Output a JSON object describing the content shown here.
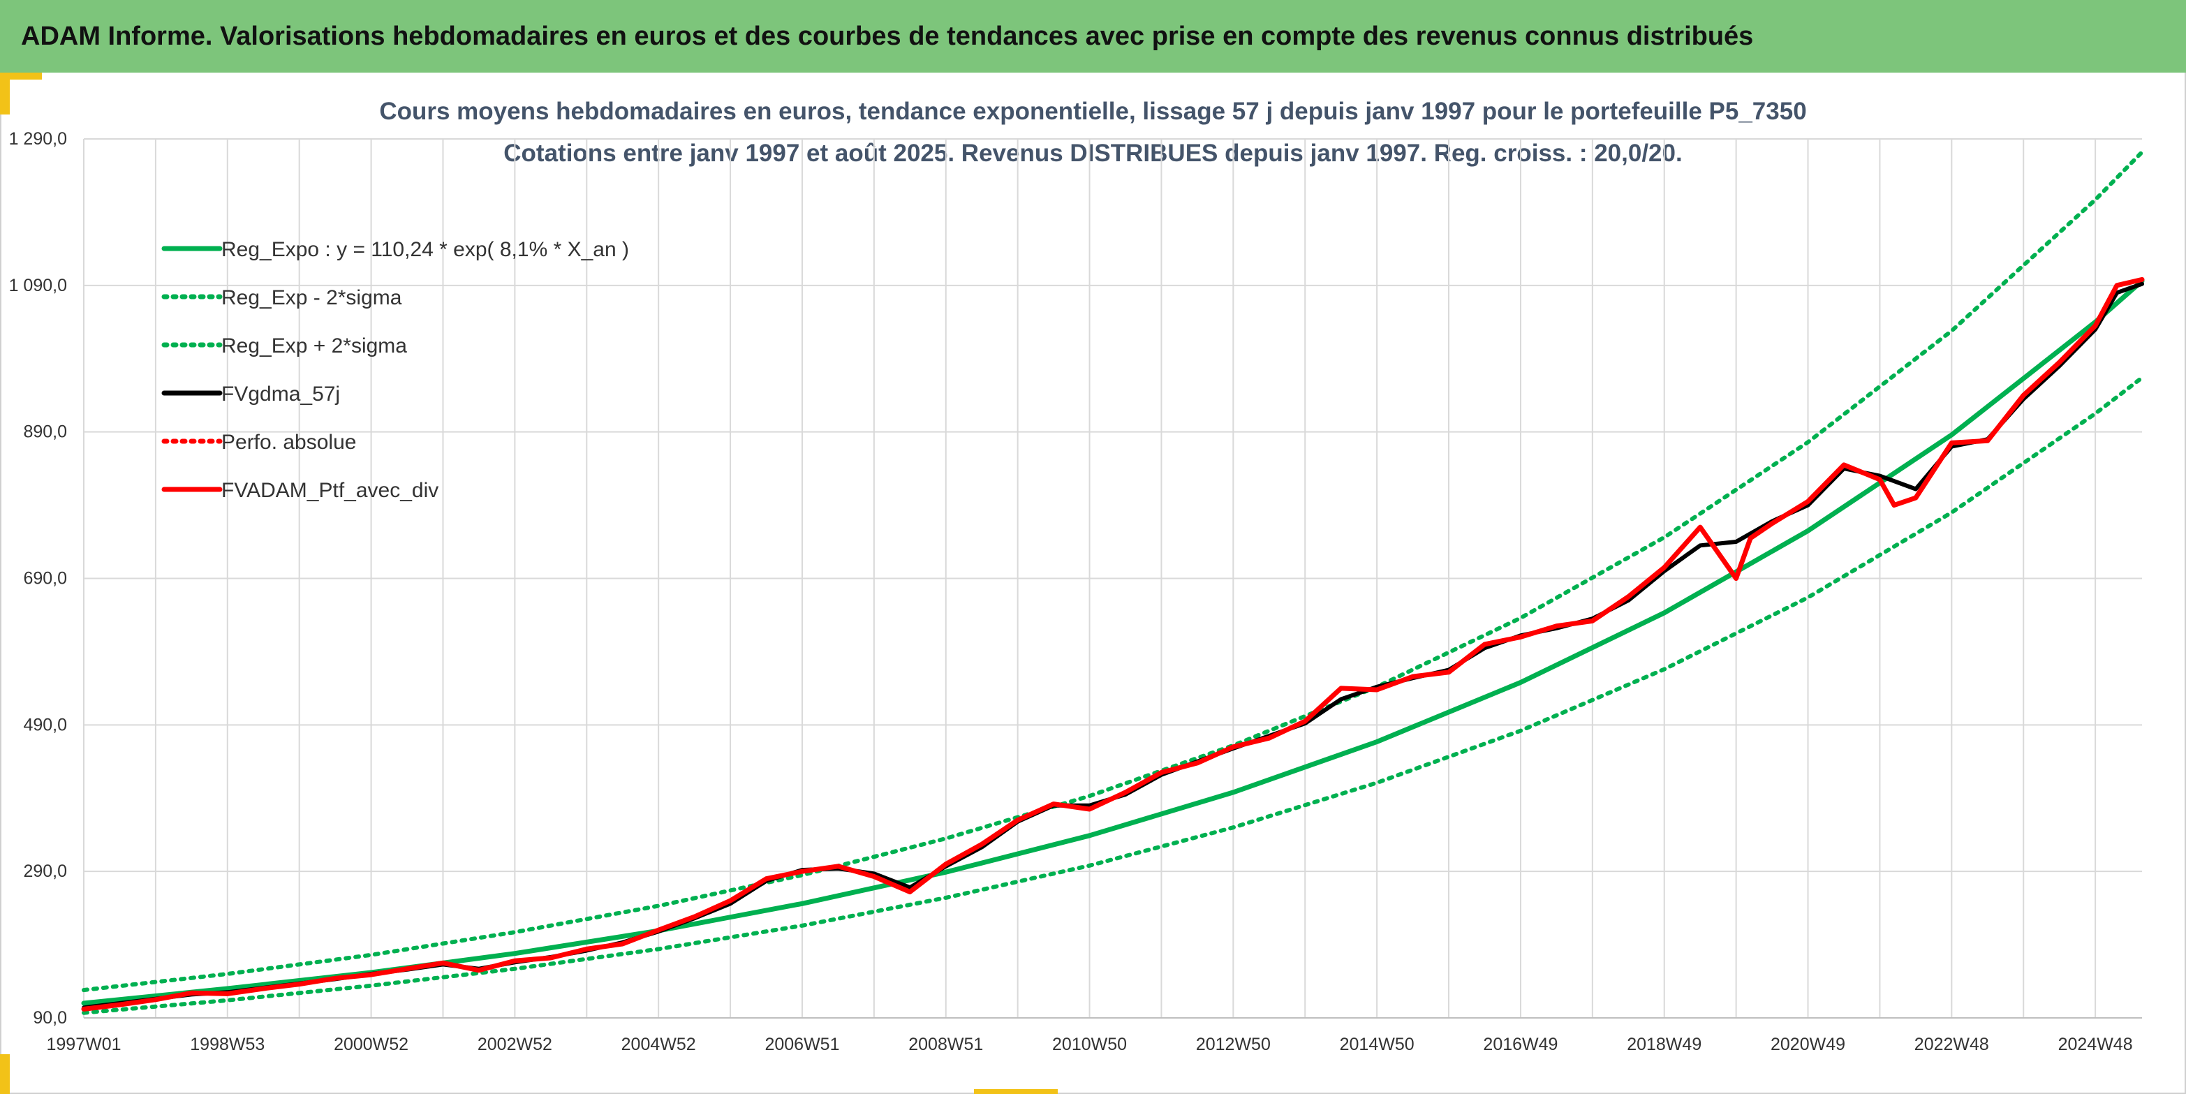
{
  "header": {
    "title": "ADAM Informe. Valorisations hebdomadaires en euros et des courbes de tendances avec prise en compte des revenus connus distribués"
  },
  "colors": {
    "banner": "#7dc57b",
    "reg_expo": "#00b050",
    "fv_gdma": "#000000",
    "fvadam": "#ff0000",
    "grid": "#d9d9d9"
  },
  "chart_data": {
    "type": "line",
    "title": "Cours moyens hebdomadaires en euros, tendance exponentielle, lissage 57 j depuis janv 1997 pour le portefeuille P5_7350",
    "subtitle": "Cotations entre janv 1997 et août 2025. Revenus DISTRIBUES depuis janv 1997. Reg. croiss. : 20,0/20.",
    "xlabel": "",
    "ylabel": "",
    "x_range": [
      1997.0,
      2025.65
    ],
    "ylim": [
      90,
      1290
    ],
    "y_ticks": [
      "90,0",
      "290,0",
      "490,0",
      "690,0",
      "890,0",
      "1 090,0",
      "1 290,0"
    ],
    "x_ticks": [
      {
        "label": "1997W01",
        "x": 1997.0
      },
      {
        "label": "1998W53",
        "x": 1999.0
      },
      {
        "label": "2000W52",
        "x": 2001.0
      },
      {
        "label": "2002W52",
        "x": 2003.0
      },
      {
        "label": "2004W52",
        "x": 2005.0
      },
      {
        "label": "2006W51",
        "x": 2007.0
      },
      {
        "label": "2008W51",
        "x": 2009.0
      },
      {
        "label": "2010W50",
        "x": 2011.0
      },
      {
        "label": "2012W50",
        "x": 2013.0
      },
      {
        "label": "2014W50",
        "x": 2015.0
      },
      {
        "label": "2016W49",
        "x": 2017.0
      },
      {
        "label": "2018W49",
        "x": 2019.0
      },
      {
        "label": "2020W49",
        "x": 2021.0
      },
      {
        "label": "2022W48",
        "x": 2023.0
      },
      {
        "label": "2024W48",
        "x": 2025.0
      }
    ],
    "grid": true,
    "legend_position": "top-left",
    "series": [
      {
        "name": "Reg_Expo : y = 110,24 * exp( 8,1% *  X_an )",
        "style": "solid",
        "color": "#00b050",
        "x": [
          1997.0,
          1999.0,
          2001.0,
          2003.0,
          2005.0,
          2007.0,
          2009.0,
          2011.0,
          2013.0,
          2015.0,
          2017.0,
          2019.0,
          2021.0,
          2023.0,
          2025.0,
          2025.65
        ],
        "values": [
          110,
          130,
          152,
          178,
          209,
          246,
          289,
          339,
          398,
          467,
          548,
          643,
          755,
          886,
          1040,
          1096
        ]
      },
      {
        "name": "Reg_Exp - 2*sigma",
        "style": "dotted",
        "color": "#00b050",
        "x": [
          1997.0,
          1999.0,
          2001.0,
          2003.0,
          2005.0,
          2007.0,
          2009.0,
          2011.0,
          2013.0,
          2015.0,
          2017.0,
          2019.0,
          2021.0,
          2023.0,
          2025.0,
          2025.65
        ],
        "values": [
          97,
          114,
          134,
          157,
          184,
          216,
          254,
          298,
          350,
          411,
          482,
          566,
          664,
          780,
          915,
          964
        ]
      },
      {
        "name": "Reg_Exp + 2*sigma",
        "style": "dotted",
        "color": "#00b050",
        "x": [
          1997.0,
          1999.0,
          2001.0,
          2003.0,
          2005.0,
          2007.0,
          2009.0,
          2011.0,
          2013.0,
          2015.0,
          2017.0,
          2019.0,
          2021.0,
          2023.0,
          2025.0,
          2025.65
        ],
        "values": [
          128,
          150,
          176,
          207,
          243,
          285,
          335,
          393,
          462,
          542,
          636,
          746,
          876,
          1028,
          1207,
          1272
        ]
      },
      {
        "name": "FVgdma_57j",
        "style": "solid",
        "color": "#000000",
        "x": [
          1997.0,
          1997.5,
          1998.0,
          1998.5,
          1999.0,
          1999.5,
          2000.0,
          2000.5,
          2001.0,
          2001.5,
          2002.0,
          2002.5,
          2003.0,
          2003.5,
          2004.0,
          2004.5,
          2005.0,
          2005.5,
          2006.0,
          2006.5,
          2007.0,
          2007.5,
          2008.0,
          2008.5,
          2009.0,
          2009.5,
          2010.0,
          2010.5,
          2011.0,
          2011.5,
          2012.0,
          2012.5,
          2013.0,
          2013.5,
          2014.0,
          2014.5,
          2015.0,
          2015.5,
          2016.0,
          2016.5,
          2017.0,
          2017.5,
          2018.0,
          2018.5,
          2019.0,
          2019.5,
          2020.0,
          2020.5,
          2021.0,
          2021.5,
          2022.0,
          2022.5,
          2023.0,
          2023.5,
          2024.0,
          2024.5,
          2025.0,
          2025.3,
          2025.65
        ],
        "values": [
          104,
          110,
          116,
          122,
          125,
          131,
          137,
          143,
          150,
          156,
          163,
          157,
          166,
          173,
          182,
          193,
          208,
          226,
          246,
          277,
          292,
          294,
          287,
          268,
          297,
          323,
          358,
          380,
          380,
          395,
          422,
          440,
          458,
          475,
          492,
          525,
          542,
          554,
          565,
          595,
          612,
          622,
          635,
          660,
          700,
          735,
          740,
          768,
          790,
          840,
          830,
          812,
          870,
          880,
          935,
          980,
          1030,
          1080,
          1092
        ]
      },
      {
        "name": "Perfo. absolue",
        "style": "dotted",
        "color": "#ff0000",
        "x": [
          1997.0,
          1997.5,
          1998.0,
          1998.5,
          1999.0,
          1999.5,
          2000.0,
          2000.5,
          2001.0,
          2001.5,
          2002.0,
          2002.5,
          2003.0,
          2003.5,
          2004.0,
          2004.5,
          2005.0,
          2005.5,
          2006.0,
          2006.5,
          2007.0,
          2007.5,
          2008.0,
          2008.5,
          2009.0,
          2009.5,
          2010.0,
          2010.5,
          2011.0,
          2011.5,
          2012.0,
          2012.5,
          2013.0,
          2013.5,
          2014.0,
          2014.5,
          2015.0,
          2015.5,
          2016.0,
          2016.5,
          2017.0,
          2017.5,
          2018.0,
          2018.5,
          2019.0,
          2019.5,
          2020.0,
          2020.5,
          2021.0,
          2021.5,
          2022.0,
          2022.5,
          2023.0,
          2023.5,
          2024.0,
          2024.5,
          2025.0,
          2025.3,
          2025.65
        ],
        "values": [
          102,
          108,
          115,
          124,
          123,
          130,
          136,
          144,
          149,
          157,
          165,
          155,
          168,
          172,
          184,
          191,
          210,
          228,
          250,
          280,
          290,
          297,
          283,
          262,
          300,
          327,
          360,
          382,
          375,
          398,
          425,
          438,
          460,
          472,
          495,
          540,
          538,
          556,
          562,
          600,
          610,
          625,
          632,
          665,
          705,
          730,
          745,
          765,
          795,
          845,
          825,
          800,
          875,
          878,
          940,
          985,
          1035,
          1090,
          1098
        ]
      },
      {
        "name": "FVADAM_Ptf_avec_div",
        "style": "solid",
        "color": "#ff0000",
        "x": [
          1997.0,
          1997.5,
          1998.0,
          1998.5,
          1999.0,
          1999.5,
          2000.0,
          2000.5,
          2001.0,
          2001.5,
          2002.0,
          2002.5,
          2003.0,
          2003.5,
          2004.0,
          2004.5,
          2005.0,
          2005.5,
          2006.0,
          2006.5,
          2007.0,
          2007.5,
          2008.0,
          2008.5,
          2009.0,
          2009.5,
          2010.0,
          2010.5,
          2011.0,
          2011.5,
          2012.0,
          2012.5,
          2013.0,
          2013.5,
          2014.0,
          2014.5,
          2015.0,
          2015.5,
          2016.0,
          2016.5,
          2017.0,
          2017.5,
          2018.0,
          2018.5,
          2019.0,
          2019.5,
          2020.0,
          2020.2,
          2020.5,
          2021.0,
          2021.5,
          2022.0,
          2022.2,
          2022.5,
          2023.0,
          2023.5,
          2024.0,
          2024.5,
          2025.0,
          2025.3,
          2025.65
        ],
        "values": [
          102,
          108,
          115,
          124,
          123,
          130,
          136,
          144,
          149,
          157,
          165,
          155,
          168,
          172,
          184,
          191,
          210,
          228,
          250,
          280,
          290,
          297,
          283,
          262,
          300,
          327,
          360,
          382,
          375,
          398,
          425,
          438,
          460,
          472,
          495,
          540,
          538,
          556,
          562,
          600,
          610,
          625,
          632,
          665,
          705,
          760,
          690,
          745,
          765,
          795,
          845,
          825,
          790,
          800,
          875,
          878,
          940,
          985,
          1035,
          1090,
          1098
        ]
      }
    ]
  }
}
